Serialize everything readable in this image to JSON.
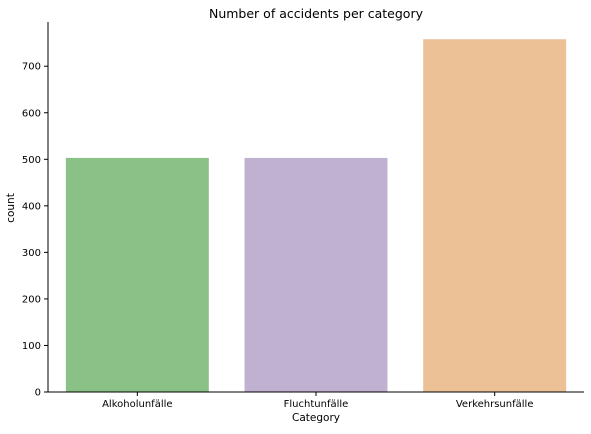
{
  "chart_data": {
    "type": "bar",
    "title": "Number of accidents per category",
    "xlabel": "Category",
    "ylabel": "count",
    "categories": [
      "Alkoholunfälle",
      "Fluchtunfälle",
      "Verkehrsunfälle"
    ],
    "values": [
      503,
      503,
      758
    ],
    "colors": [
      "#8ac186",
      "#c1b1d1",
      "#edc196"
    ],
    "ylim": [
      0,
      795
    ],
    "yticks": [
      0,
      100,
      200,
      300,
      400,
      500,
      600,
      700
    ],
    "grid": false,
    "legend": "none"
  }
}
